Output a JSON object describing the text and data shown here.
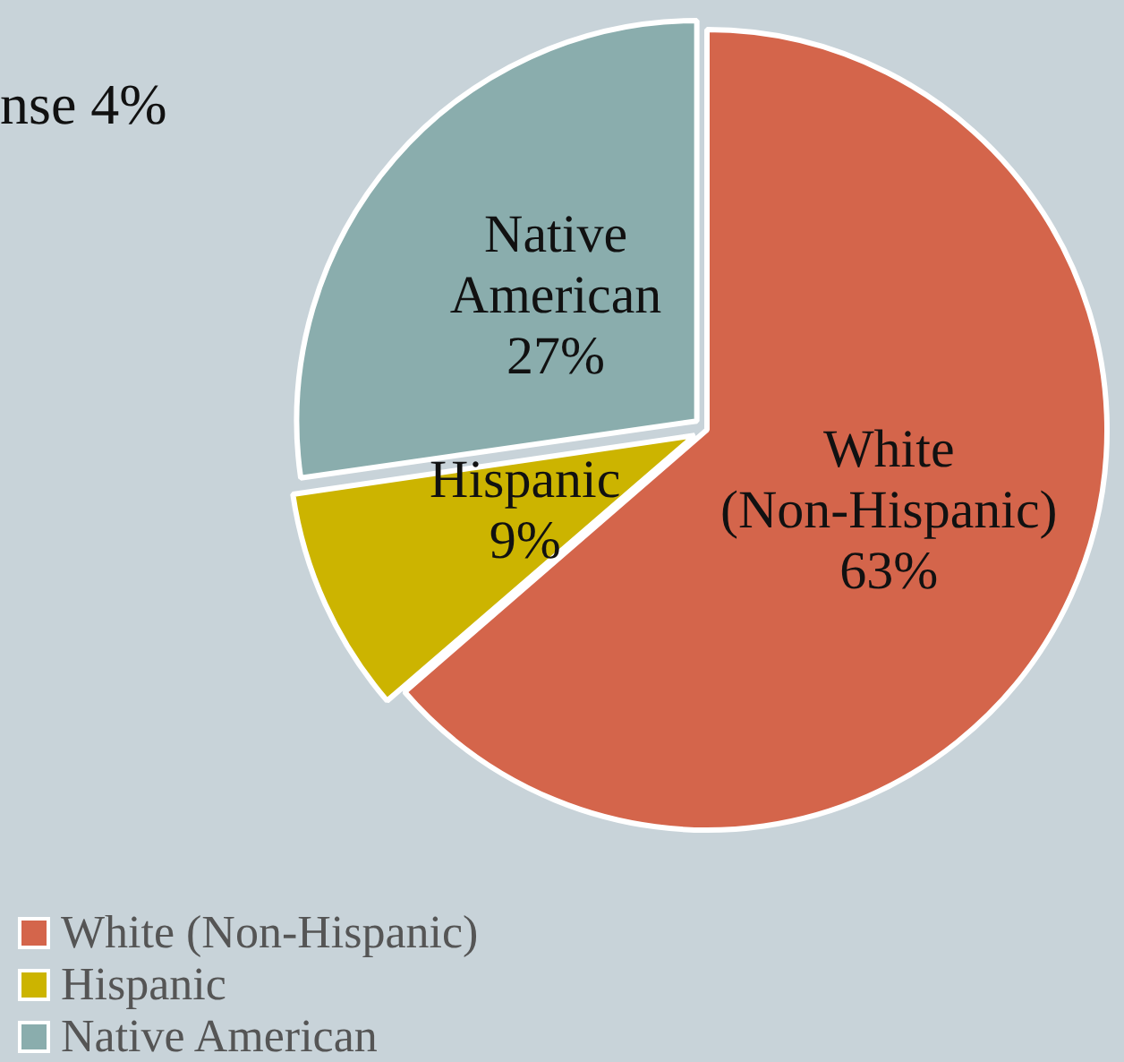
{
  "chart_data": {
    "type": "pie",
    "categories": [
      "White (Non-Hispanic)",
      "Hispanic",
      "Native American"
    ],
    "values": [
      63,
      9,
      27
    ],
    "value_labels": [
      "63%",
      "9%",
      "27%"
    ],
    "colors": [
      "#d4654b",
      "#ccb400",
      "#8aadad"
    ],
    "annotations": [
      "nse 4%"
    ],
    "legend": "bottom left"
  }
}
